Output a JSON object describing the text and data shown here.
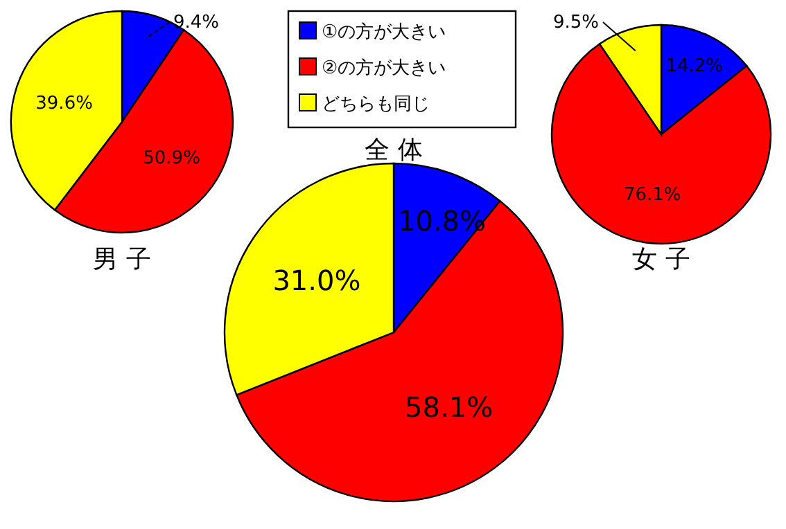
{
  "chart_data": [
    {
      "type": "pie",
      "title": "男 子",
      "categories": [
        null,
        null,
        null
      ],
      "values": [
        9.4,
        50.9,
        39.6
      ],
      "colors": [
        "#0000ff",
        "#ff0000",
        "#ffff00"
      ],
      "value_labels": [
        "9.4%",
        "50.9%",
        "39.6%"
      ]
    },
    {
      "type": "pie",
      "title": "全 体",
      "categories": [
        "①の方が大きい",
        "②の方が大きい",
        "どちらも同じ"
      ],
      "values": [
        10.8,
        58.1,
        31.0
      ],
      "colors": [
        "#0000ff",
        "#ff0000",
        "#ffff00"
      ],
      "value_labels": [
        "10.8%",
        "58.1%",
        "31.0%"
      ],
      "legend": "top"
    },
    {
      "type": "pie",
      "title": "女 子",
      "categories": [
        null,
        null,
        null
      ],
      "values": [
        14.2,
        76.1,
        9.5
      ],
      "colors": [
        "#0000ff",
        "#ff0000",
        "#ffff00"
      ],
      "value_labels": [
        "14.2%",
        "76.1%",
        "9.5%"
      ]
    }
  ]
}
